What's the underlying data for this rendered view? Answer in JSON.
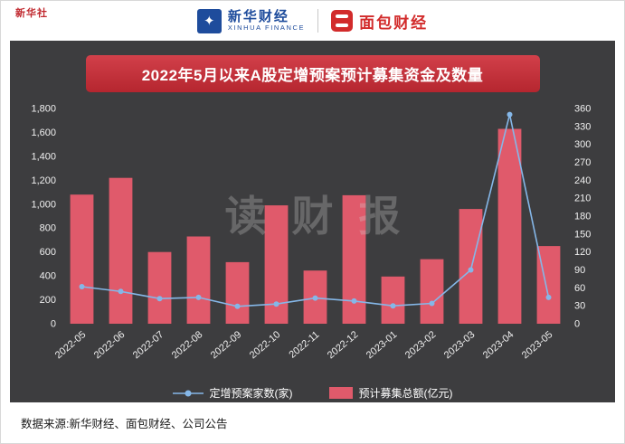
{
  "header": {
    "corner_mark": "新华社",
    "xinhua": {
      "icon_glyph": "✦",
      "name": "新华财经",
      "sub": "XINHUA FINANCE"
    },
    "bread": {
      "name": "面包财经"
    }
  },
  "chart_data": {
    "type": "bar+line combo",
    "title": "2022年5月以来A股定增预案预计募集资金及数量",
    "watermark": "读财报",
    "categories": [
      "2022-05",
      "2022-06",
      "2022-07",
      "2022-08",
      "2022-09",
      "2022-10",
      "2022-11",
      "2022-12",
      "2023-01",
      "2023-02",
      "2023-03",
      "2023-04",
      "2023-05"
    ],
    "series": [
      {
        "name": "定增预案家数(家)",
        "type": "line",
        "axis": "right",
        "color": "#85b7e8",
        "values": [
          62,
          54,
          42,
          44,
          29,
          33,
          43,
          38,
          30,
          34,
          90,
          350,
          44
        ]
      },
      {
        "name": "预计募集总额(亿元)",
        "type": "bar",
        "axis": "left",
        "color": "#e05a6b",
        "values": [
          1080,
          1220,
          600,
          730,
          515,
          990,
          445,
          1075,
          395,
          540,
          960,
          1630,
          650
        ]
      }
    ],
    "left_axis": {
      "min": 0,
      "max": 1800,
      "step": 200
    },
    "right_axis": {
      "min": 0,
      "max": 360,
      "step": 30
    },
    "legend_position": "bottom",
    "grid": false
  },
  "footer": {
    "source": "数据来源:新华财经、面包财经、公司公告"
  },
  "colors": {
    "banner": "#c63540",
    "panel_bg": "#3d3d3f",
    "bar": "#e05a6b",
    "line": "#85b7e8",
    "logo_blue": "#1e4c9c",
    "logo_red": "#d22b2b"
  }
}
